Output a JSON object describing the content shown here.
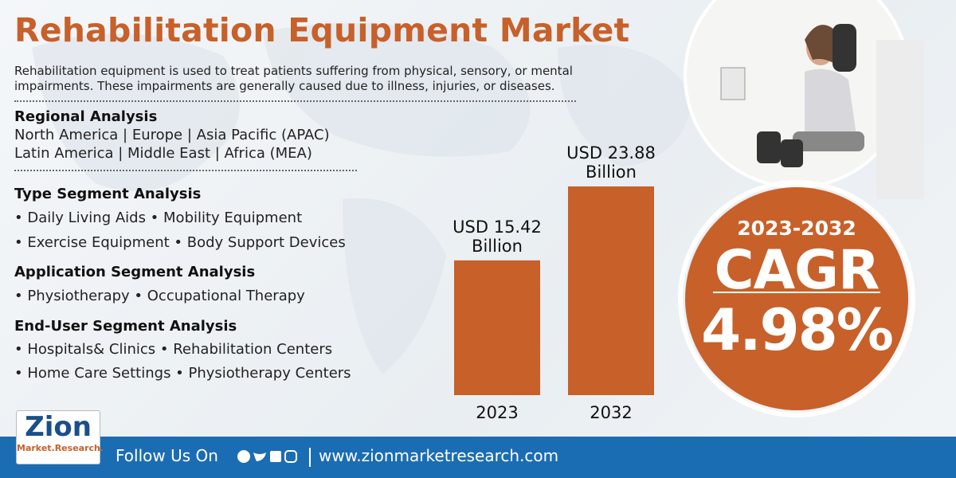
{
  "header": {
    "title": "Rehabilitation Equipment Market",
    "description": "Rehabilitation equipment is used to treat patients suffering from physical, sensory, or mental impairments. These impairments are generally caused due to illness, injuries, or diseases."
  },
  "sections": [
    {
      "heading": "Regional Analysis",
      "lines": [
        "North America | Europe | Asia Pacific (APAC)",
        "Latin America | Middle East | Africa (MEA)"
      ]
    },
    {
      "heading": "Type Segment Analysis",
      "lines": [
        "• Daily Living Aids • Mobility Equipment",
        "• Exercise Equipment • Body Support Devices"
      ]
    },
    {
      "heading": "Application Segment Analysis",
      "lines": [
        "• Physiotherapy • Occupational Therapy"
      ]
    },
    {
      "heading": "End-User Segment Analysis",
      "lines": [
        "• Hospitals& Clinics • Rehabilitation Centers",
        "• Home Care Settings • Physiotherapy Centers"
      ]
    }
  ],
  "chart_data": {
    "type": "bar",
    "categories": [
      "2023",
      "2032"
    ],
    "values": [
      15.42,
      23.88
    ],
    "value_labels": [
      "USD 15.42 Billion",
      "USD 23.88 Billion"
    ],
    "color": "#c8602a"
  },
  "cagr": {
    "period": "2023-2032",
    "label": "CAGR",
    "value": "4.98%"
  },
  "logo": {
    "name": "Zion",
    "sub": "Market.Research."
  },
  "footer": {
    "follow": "Follow Us On",
    "url": "www.zionmarketresearch.com"
  }
}
